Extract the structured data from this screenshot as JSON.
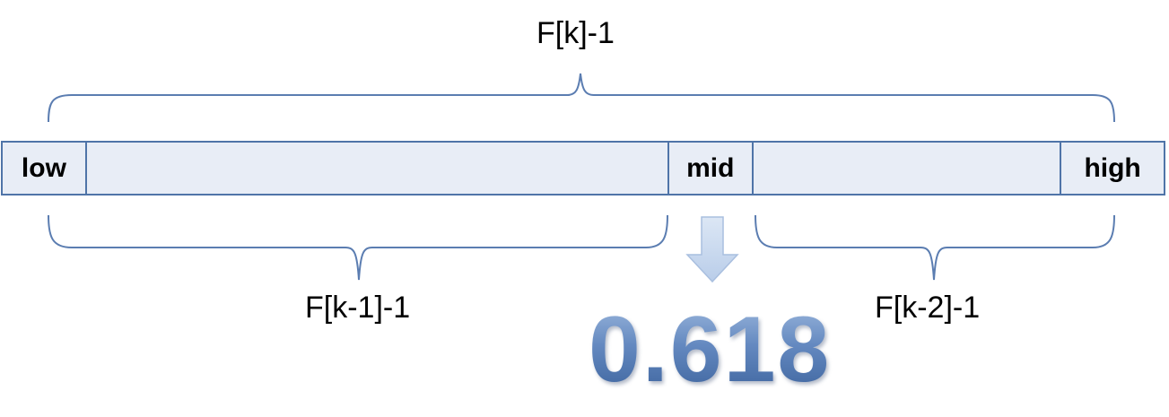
{
  "labels": {
    "total": "F[k]-1",
    "left_part": "F[k-1]-1",
    "right_part": "F[k-2]-1"
  },
  "array": {
    "low": "low",
    "mid": "mid",
    "high": "high"
  },
  "ratio": "0.618",
  "colors": {
    "cell_fill": "#e8edf6",
    "cell_border": "#4f74a8",
    "brace_stroke": "#5b7db1",
    "ratio_text": "#4a70aa",
    "arrow_fill": "#c9d9ef"
  },
  "icons": {
    "down_arrow": "down-arrow-icon"
  }
}
